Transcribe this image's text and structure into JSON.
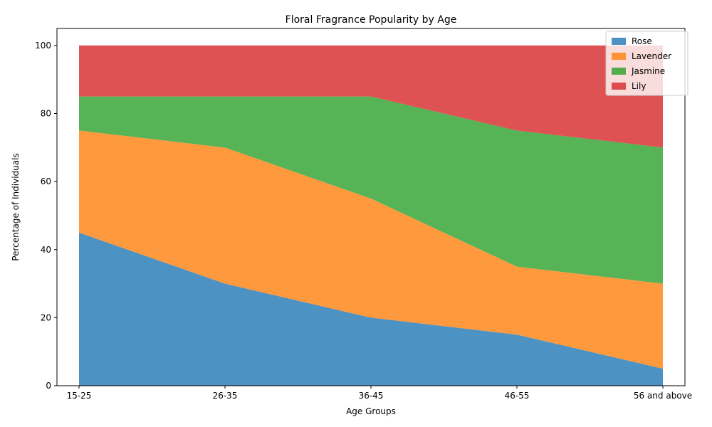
{
  "chart_data": {
    "type": "area",
    "stacked": true,
    "title": "Floral Fragrance Popularity by Age",
    "xlabel": "Age Groups",
    "ylabel": "Percentage of Individuals",
    "categories": [
      "15-25",
      "26-35",
      "36-45",
      "46-55",
      "56 and above"
    ],
    "series": [
      {
        "name": "Rose",
        "values": [
          45,
          30,
          20,
          15,
          5
        ],
        "color": "#1f77b4"
      },
      {
        "name": "Lavender",
        "values": [
          30,
          40,
          35,
          20,
          25
        ],
        "color": "#ff7f0e"
      },
      {
        "name": "Jasmine",
        "values": [
          10,
          15,
          30,
          40,
          40
        ],
        "color": "#2ca02c"
      },
      {
        "name": "Lily",
        "values": [
          15,
          15,
          15,
          25,
          30
        ],
        "color": "#d62728"
      }
    ],
    "ylim": [
      0,
      105
    ],
    "yticks": [
      0,
      20,
      40,
      60,
      80,
      100
    ],
    "area_opacity": 0.8,
    "grid": false,
    "legend_position": "top-right"
  }
}
